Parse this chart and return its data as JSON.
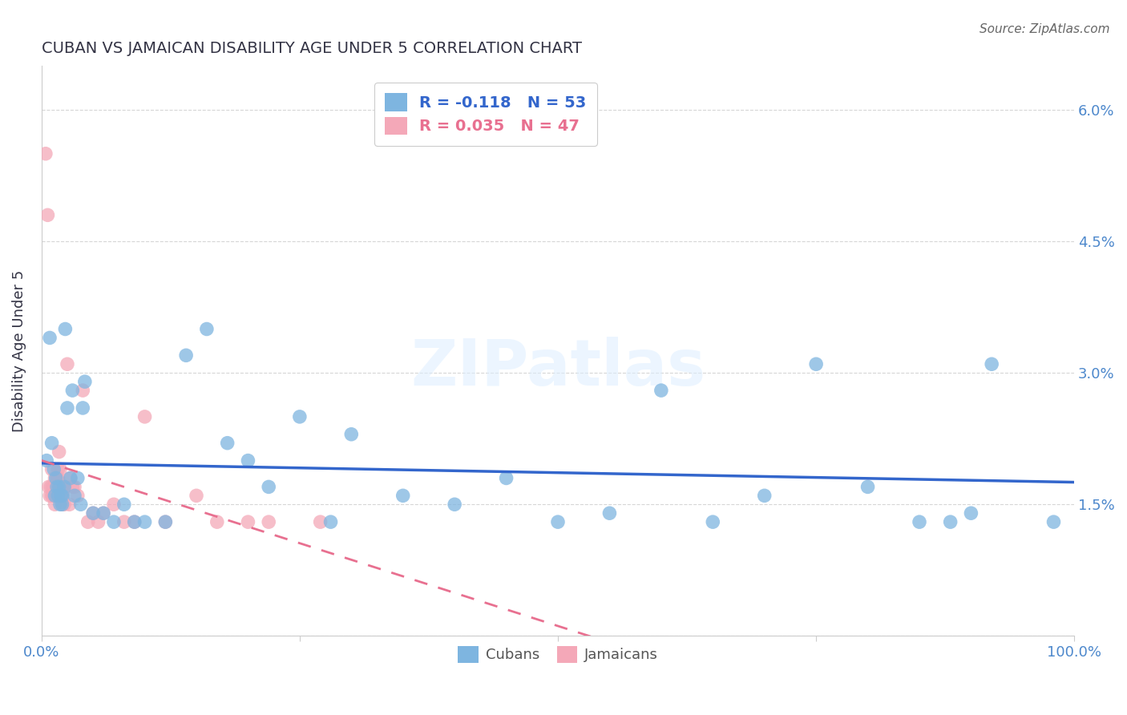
{
  "title": "CUBAN VS JAMAICAN DISABILITY AGE UNDER 5 CORRELATION CHART",
  "source": "Source: ZipAtlas.com",
  "ylabel": "Disability Age Under 5",
  "xlim": [
    0,
    1.0
  ],
  "ylim": [
    0,
    0.065
  ],
  "xtick_positions": [
    0.0,
    0.25,
    0.5,
    0.75,
    1.0
  ],
  "xtick_labels": [
    "0.0%",
    "",
    "",
    "",
    "100.0%"
  ],
  "ytick_positions": [
    0.0,
    0.015,
    0.03,
    0.045,
    0.06
  ],
  "ytick_labels": [
    "",
    "1.5%",
    "3.0%",
    "4.5%",
    "6.0%"
  ],
  "cuban_R": -0.118,
  "cuban_N": 53,
  "jamaican_R": 0.035,
  "jamaican_N": 47,
  "cuban_color": "#7eb5e0",
  "jamaican_color": "#f4a8b8",
  "cuban_line_color": "#3366cc",
  "jamaican_line_color": "#e87090",
  "cuban_x": [
    0.005,
    0.008,
    0.01,
    0.012,
    0.013,
    0.014,
    0.015,
    0.016,
    0.017,
    0.018,
    0.019,
    0.02,
    0.02,
    0.022,
    0.023,
    0.025,
    0.028,
    0.03,
    0.032,
    0.035,
    0.038,
    0.04,
    0.042,
    0.05,
    0.06,
    0.07,
    0.08,
    0.09,
    0.1,
    0.12,
    0.14,
    0.16,
    0.18,
    0.2,
    0.22,
    0.25,
    0.28,
    0.3,
    0.35,
    0.4,
    0.45,
    0.5,
    0.55,
    0.6,
    0.65,
    0.7,
    0.75,
    0.8,
    0.85,
    0.88,
    0.9,
    0.92,
    0.98
  ],
  "cuban_y": [
    0.02,
    0.034,
    0.022,
    0.019,
    0.016,
    0.018,
    0.017,
    0.016,
    0.017,
    0.015,
    0.016,
    0.015,
    0.016,
    0.017,
    0.035,
    0.026,
    0.018,
    0.028,
    0.016,
    0.018,
    0.015,
    0.026,
    0.029,
    0.014,
    0.014,
    0.013,
    0.015,
    0.013,
    0.013,
    0.013,
    0.032,
    0.035,
    0.022,
    0.02,
    0.017,
    0.025,
    0.013,
    0.023,
    0.016,
    0.015,
    0.018,
    0.013,
    0.014,
    0.028,
    0.013,
    0.016,
    0.031,
    0.017,
    0.013,
    0.013,
    0.014,
    0.031,
    0.013
  ],
  "jamaican_x": [
    0.004,
    0.006,
    0.007,
    0.008,
    0.009,
    0.01,
    0.01,
    0.011,
    0.012,
    0.013,
    0.013,
    0.014,
    0.015,
    0.015,
    0.016,
    0.016,
    0.017,
    0.017,
    0.018,
    0.018,
    0.019,
    0.02,
    0.02,
    0.021,
    0.022,
    0.023,
    0.025,
    0.027,
    0.028,
    0.03,
    0.032,
    0.035,
    0.04,
    0.045,
    0.05,
    0.055,
    0.06,
    0.07,
    0.08,
    0.09,
    0.1,
    0.12,
    0.15,
    0.17,
    0.2,
    0.22,
    0.27
  ],
  "jamaican_y": [
    0.055,
    0.048,
    0.017,
    0.016,
    0.017,
    0.016,
    0.019,
    0.017,
    0.016,
    0.018,
    0.015,
    0.017,
    0.016,
    0.018,
    0.019,
    0.018,
    0.017,
    0.021,
    0.016,
    0.019,
    0.016,
    0.017,
    0.016,
    0.016,
    0.015,
    0.017,
    0.031,
    0.015,
    0.018,
    0.017,
    0.017,
    0.016,
    0.028,
    0.013,
    0.014,
    0.013,
    0.014,
    0.015,
    0.013,
    0.013,
    0.025,
    0.013,
    0.016,
    0.013,
    0.013,
    0.013,
    0.013
  ],
  "watermark_text": "ZIPatlas",
  "background_color": "#ffffff",
  "grid_color": "#cccccc",
  "title_color": "#333344",
  "tick_label_color": "#4d88cc",
  "ylabel_color": "#333344"
}
